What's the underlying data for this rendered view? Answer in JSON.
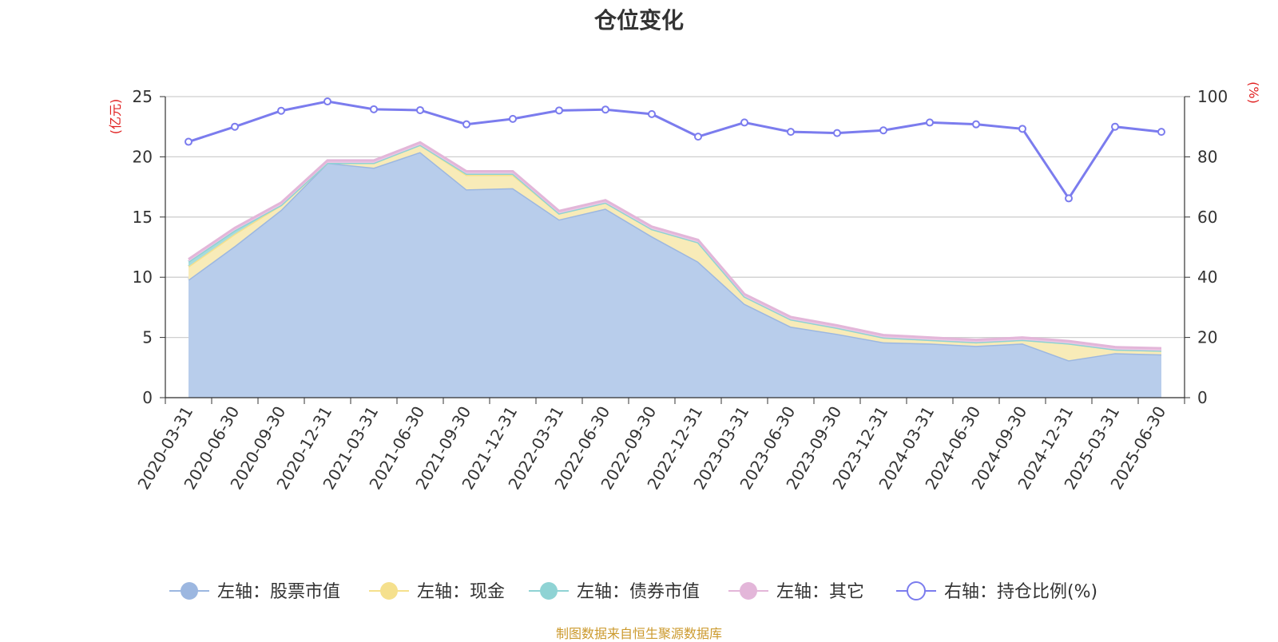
{
  "title": "仓位变化",
  "source_note": "制图数据来自恒生聚源数据库",
  "chart_data": {
    "type": "area",
    "categories": [
      "2020-03-31",
      "2020-06-30",
      "2020-09-30",
      "2020-12-31",
      "2021-03-31",
      "2021-06-30",
      "2021-09-30",
      "2021-12-31",
      "2022-03-31",
      "2022-06-30",
      "2022-09-30",
      "2022-12-31",
      "2023-03-31",
      "2023-06-30",
      "2023-09-30",
      "2023-12-31",
      "2024-03-31",
      "2024-06-30",
      "2024-09-30",
      "2024-12-31",
      "2025-03-31",
      "2025-06-30"
    ],
    "left_axis": {
      "label": "(亿元)",
      "ylim": [
        0,
        25
      ],
      "ticks": [
        "0",
        "5",
        "10",
        "15",
        "20",
        "25"
      ]
    },
    "right_axis": {
      "label": "(%)",
      "ylim": [
        0,
        100
      ],
      "ticks": [
        "0",
        "20",
        "40",
        "60",
        "80",
        "100"
      ]
    },
    "grid": true,
    "legend_position": "bottom",
    "series": [
      {
        "name": "左轴：股票市值",
        "axis": "left",
        "stacked": true,
        "color": "#9cb7e0",
        "fill": "#b8cdeb",
        "values": [
          9.8,
          12.6,
          15.6,
          19.5,
          19.1,
          20.4,
          17.3,
          17.4,
          14.8,
          15.7,
          13.4,
          11.3,
          7.8,
          5.9,
          5.3,
          4.6,
          4.5,
          4.3,
          4.5,
          3.1,
          3.7,
          3.6
        ]
      },
      {
        "name": "左轴：现金",
        "axis": "left",
        "stacked": true,
        "color": "#f5e08d",
        "fill": "#f8ebb8",
        "values": [
          1.1,
          1.0,
          0.4,
          0.0,
          0.4,
          0.6,
          1.2,
          1.1,
          0.5,
          0.5,
          0.6,
          1.6,
          0.6,
          0.6,
          0.5,
          0.4,
          0.3,
          0.3,
          0.3,
          1.4,
          0.3,
          0.3
        ]
      },
      {
        "name": "左轴：债券市值",
        "axis": "left",
        "stacked": true,
        "color": "#8fd3d4",
        "fill": "#a6dcdd",
        "values": [
          0.4,
          0.3,
          0.0,
          0.0,
          0.0,
          0.0,
          0.1,
          0.1,
          0.0,
          0.0,
          0.0,
          0.0,
          0.0,
          0.0,
          0.0,
          0.0,
          0.0,
          0.0,
          0.0,
          0.0,
          0.0,
          0.0
        ]
      },
      {
        "name": "左轴：其它",
        "axis": "left",
        "stacked": true,
        "color": "#e3b6d9",
        "fill": "#ebc7e4",
        "values": [
          0.2,
          0.2,
          0.2,
          0.2,
          0.2,
          0.2,
          0.2,
          0.2,
          0.2,
          0.2,
          0.2,
          0.2,
          0.2,
          0.2,
          0.2,
          0.2,
          0.2,
          0.2,
          0.2,
          0.2,
          0.2,
          0.2
        ]
      },
      {
        "name": "右轴：持仓比例(%)",
        "axis": "right",
        "type": "line",
        "color": "#7b7cee",
        "values": [
          85.0,
          90.0,
          95.3,
          98.4,
          95.8,
          95.5,
          90.8,
          92.6,
          95.4,
          95.7,
          94.2,
          86.7,
          91.4,
          88.3,
          87.9,
          88.8,
          91.4,
          90.8,
          89.3,
          66.2,
          90.0,
          88.3
        ]
      }
    ]
  }
}
